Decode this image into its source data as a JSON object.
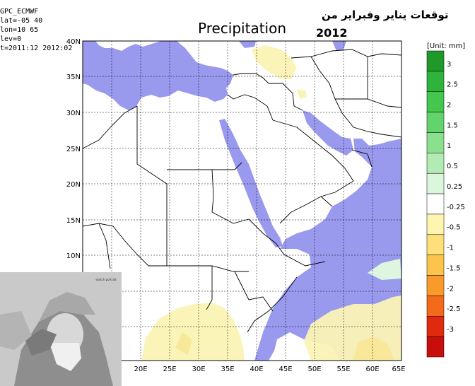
{
  "header": {
    "meta_lines": [
      "GPC_ECMWF",
      "lat=-05 40",
      "lon=10 65",
      "lev=0",
      "t=2011:12 2012:02"
    ],
    "title": "Precipitation",
    "arabic_title": "توقعات يناير وفبراير من",
    "year": "2012"
  },
  "map": {
    "lat_labels": [
      "40N",
      "35N",
      "30N",
      "25N",
      "20N",
      "15N",
      "10N"
    ],
    "lon_labels": [
      "20E",
      "25E",
      "30E",
      "35E",
      "40E",
      "45E",
      "50E",
      "55E",
      "60E",
      "65E"
    ],
    "colors": {
      "water": "#9999ee",
      "land": "#ffffff",
      "light_yellow": "#fbf3b5",
      "yellow": "#f9e89a",
      "light_green": "#def6e0",
      "border": "#000000"
    }
  },
  "colorbar": {
    "unit_label": "[Unit: mm]",
    "levels": [
      "3",
      "2.5",
      "2",
      "1.5",
      "1",
      "0.5",
      "0.25",
      "-0.25",
      "-0.5",
      "-1",
      "-1.5",
      "-2",
      "-2.5",
      "-3"
    ],
    "colors": [
      "#1f9a2a",
      "#2eb43a",
      "#45c64f",
      "#63d46b",
      "#8ae08f",
      "#b2ecb4",
      "#daf6db",
      "#ffffff",
      "#fff4b0",
      "#fde07a",
      "#fcc44a",
      "#f99a2a",
      "#f26a1a",
      "#e02a10",
      "#c80e0a"
    ]
  },
  "photo": {
    "caption": "sketch portrait"
  }
}
